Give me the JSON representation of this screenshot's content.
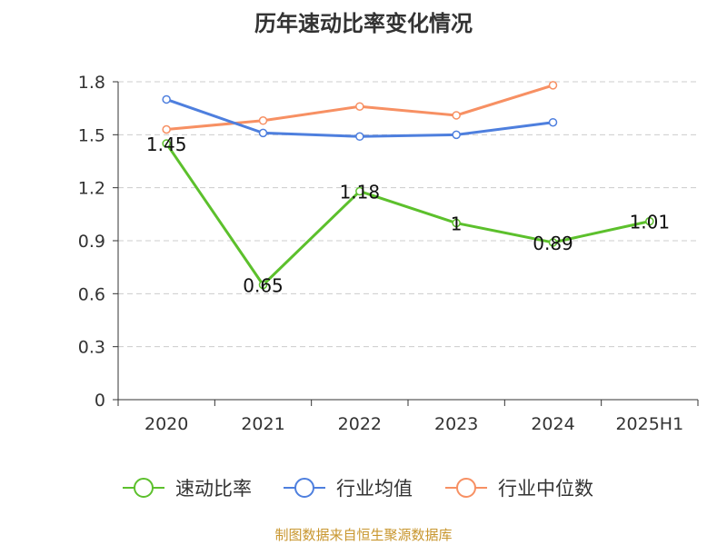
{
  "chart_data": {
    "type": "line",
    "title": "历年速动比率变化情况",
    "categories": [
      "2020",
      "2021",
      "2022",
      "2023",
      "2024",
      "2025H1"
    ],
    "yticks": [
      "0",
      "0.3",
      "0.6",
      "0.9",
      "1.2",
      "1.5",
      "1.8"
    ],
    "ylim": [
      0,
      1.8
    ],
    "grid": true,
    "legend_position": "bottom",
    "series": [
      {
        "name": "速动比率",
        "color": "#5cc02c",
        "values": [
          1.45,
          0.65,
          1.18,
          1.0,
          0.89,
          1.01
        ],
        "labels": [
          "1.45",
          "0.65",
          "1.18",
          "1",
          "0.89",
          "1.01"
        ]
      },
      {
        "name": "行业均值",
        "color": "#4e7fde",
        "values": [
          1.7,
          1.51,
          1.49,
          1.5,
          1.57,
          null
        ]
      },
      {
        "name": "行业中位数",
        "color": "#f79063",
        "values": [
          1.53,
          1.58,
          1.66,
          1.61,
          1.78,
          null
        ]
      }
    ]
  },
  "source_text": "制图数据来自恒生聚源数据库",
  "source_color": "#c8962e"
}
